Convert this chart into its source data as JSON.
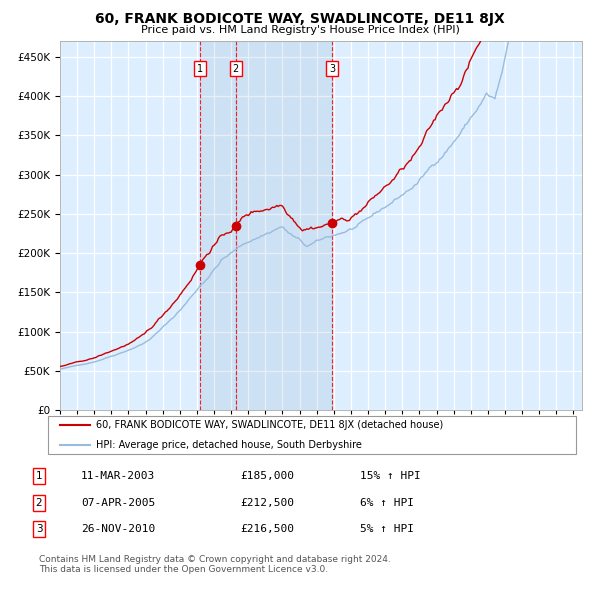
{
  "title": "60, FRANK BODICOTE WAY, SWADLINCOTE, DE11 8JX",
  "subtitle": "Price paid vs. HM Land Registry's House Price Index (HPI)",
  "legend_line1": "60, FRANK BODICOTE WAY, SWADLINCOTE, DE11 8JX (detached house)",
  "legend_line2": "HPI: Average price, detached house, South Derbyshire",
  "price_color": "#cc0000",
  "hpi_line_color": "#99bbdd",
  "background_color": "#ddeeff",
  "transactions": [
    {
      "num": 1,
      "date": "11-MAR-2003",
      "price": 185000,
      "hpi_pct": "15%",
      "direction": "↑"
    },
    {
      "num": 2,
      "date": "07-APR-2005",
      "price": 212500,
      "hpi_pct": "6%",
      "direction": "↑"
    },
    {
      "num": 3,
      "date": "26-NOV-2010",
      "price": 216500,
      "hpi_pct": "5%",
      "direction": "↑"
    }
  ],
  "transaction_dates_decimal": [
    2003.19,
    2005.27,
    2010.9
  ],
  "ylim": [
    0,
    470000
  ],
  "yticks": [
    0,
    50000,
    100000,
    150000,
    200000,
    250000,
    300000,
    350000,
    400000,
    450000
  ],
  "xlim_start": 1995.0,
  "xlim_end": 2025.5,
  "footer": "Contains HM Land Registry data © Crown copyright and database right 2024.\nThis data is licensed under the Open Government Licence v3.0.",
  "shade_regions": [
    {
      "start": 2003.19,
      "end": 2005.27
    },
    {
      "start": 2005.27,
      "end": 2010.9
    }
  ]
}
